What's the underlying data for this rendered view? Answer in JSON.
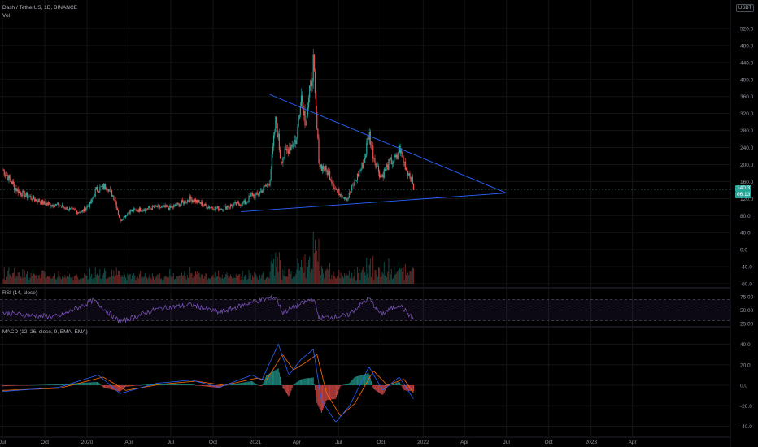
{
  "header": {
    "symbol_line": "Dash / TetherUS, 1D, BINANCE",
    "vol_label": "Vol",
    "currency_badge": "USDT"
  },
  "price_tag": {
    "price": "140.3",
    "countdown": "06:13"
  },
  "rsi_label": "RSI (14, close)",
  "macd_label": "MACD (12, 26, close, 9, EMA, EMA)",
  "colors": {
    "background": "#000000",
    "up": "#26a69a",
    "down": "#ef5350",
    "trendline": "#2962ff",
    "rsi": "#7e57c2",
    "macd": "#2962ff",
    "signal": "#ff6d00",
    "grid": "#141414"
  },
  "chart_data": [
    {
      "type": "candlestick",
      "title": "Dash / TetherUS, 1D, BINANCE",
      "price_axis_labels": [
        "520.0",
        "480.0",
        "440.0",
        "400.0",
        "360.0",
        "320.0",
        "280.0",
        "240.0",
        "200.0",
        "160.0",
        "120.0",
        "80.0",
        "40.0",
        "0.0",
        "-40.0",
        "-80.0"
      ],
      "time_axis_labels": [
        "Jul",
        "Oct",
        "2020",
        "Apr",
        "Jul",
        "Oct",
        "2021",
        "Apr",
        "Jul",
        "Oct",
        "2022",
        "Apr",
        "Jul",
        "Oct",
        "2023",
        "Apr"
      ],
      "ylim": [
        -80,
        540
      ],
      "last_price": 140.3,
      "price_path": [
        {
          "x": "2019-07-01",
          "y": 190
        },
        {
          "x": "2019-07-15",
          "y": 168
        },
        {
          "x": "2019-08-01",
          "y": 140
        },
        {
          "x": "2019-08-20",
          "y": 128
        },
        {
          "x": "2019-09-10",
          "y": 118
        },
        {
          "x": "2019-10-01",
          "y": 108
        },
        {
          "x": "2019-11-01",
          "y": 104
        },
        {
          "x": "2019-12-01",
          "y": 92
        },
        {
          "x": "2019-12-20",
          "y": 88
        },
        {
          "x": "2020-01-10",
          "y": 110
        },
        {
          "x": "2020-01-20",
          "y": 140
        },
        {
          "x": "2020-02-13",
          "y": 150
        },
        {
          "x": "2020-03-01",
          "y": 120
        },
        {
          "x": "2020-03-13",
          "y": 68
        },
        {
          "x": "2020-04-01",
          "y": 90
        },
        {
          "x": "2020-05-01",
          "y": 95
        },
        {
          "x": "2020-06-01",
          "y": 100
        },
        {
          "x": "2020-07-01",
          "y": 98
        },
        {
          "x": "2020-08-15",
          "y": 120
        },
        {
          "x": "2020-09-15",
          "y": 102
        },
        {
          "x": "2020-10-15",
          "y": 96
        },
        {
          "x": "2020-11-15",
          "y": 105
        },
        {
          "x": "2020-12-10",
          "y": 110
        },
        {
          "x": "2020-12-25",
          "y": 130
        },
        {
          "x": "2021-01-01",
          "y": 125
        },
        {
          "x": "2021-01-20",
          "y": 145
        },
        {
          "x": "2021-02-01",
          "y": 160
        },
        {
          "x": "2021-02-15",
          "y": 310
        },
        {
          "x": "2021-02-25",
          "y": 210
        },
        {
          "x": "2021-03-15",
          "y": 240
        },
        {
          "x": "2021-04-01",
          "y": 260
        },
        {
          "x": "2021-04-10",
          "y": 370
        },
        {
          "x": "2021-04-20",
          "y": 300
        },
        {
          "x": "2021-05-01",
          "y": 380
        },
        {
          "x": "2021-05-07",
          "y": 440
        },
        {
          "x": "2021-05-12",
          "y": 330
        },
        {
          "x": "2021-05-20",
          "y": 200
        },
        {
          "x": "2021-06-10",
          "y": 180
        },
        {
          "x": "2021-06-25",
          "y": 140
        },
        {
          "x": "2021-07-20",
          "y": 120
        },
        {
          "x": "2021-08-10",
          "y": 170
        },
        {
          "x": "2021-08-25",
          "y": 205
        },
        {
          "x": "2021-09-05",
          "y": 275
        },
        {
          "x": "2021-09-15",
          "y": 220
        },
        {
          "x": "2021-10-01",
          "y": 170
        },
        {
          "x": "2021-10-20",
          "y": 205
        },
        {
          "x": "2021-11-05",
          "y": 215
        },
        {
          "x": "2021-11-10",
          "y": 240
        },
        {
          "x": "2021-11-22",
          "y": 200
        },
        {
          "x": "2021-12-05",
          "y": 170
        },
        {
          "x": "2021-12-12",
          "y": 140
        }
      ],
      "trendlines": [
        {
          "name": "upper",
          "from": {
            "x": "2021-02-01",
            "y": 365
          },
          "to": {
            "x": "2022-07-01",
            "y": 133
          }
        },
        {
          "name": "lower",
          "from": {
            "x": "2020-12-01",
            "y": 89
          },
          "to": {
            "x": "2022-07-01",
            "y": 133
          }
        }
      ]
    },
    {
      "type": "line",
      "title": "RSI (14, close)",
      "axis_labels": [
        "75.00",
        "50.00",
        "25.00"
      ],
      "ylim": [
        20,
        80
      ],
      "bands": [
        70,
        30
      ],
      "path": [
        {
          "x": "2019-07-01",
          "y": 45
        },
        {
          "x": "2019-09-01",
          "y": 40
        },
        {
          "x": "2019-11-01",
          "y": 38
        },
        {
          "x": "2020-01-15",
          "y": 68
        },
        {
          "x": "2020-03-13",
          "y": 28
        },
        {
          "x": "2020-06-01",
          "y": 52
        },
        {
          "x": "2020-08-15",
          "y": 60
        },
        {
          "x": "2020-10-15",
          "y": 45
        },
        {
          "x": "2020-12-25",
          "y": 65
        },
        {
          "x": "2021-02-15",
          "y": 74
        },
        {
          "x": "2021-03-01",
          "y": 45
        },
        {
          "x": "2021-05-07",
          "y": 72
        },
        {
          "x": "2021-05-20",
          "y": 35
        },
        {
          "x": "2021-07-20",
          "y": 40
        },
        {
          "x": "2021-09-05",
          "y": 72
        },
        {
          "x": "2021-10-01",
          "y": 42
        },
        {
          "x": "2021-11-10",
          "y": 60
        },
        {
          "x": "2021-12-12",
          "y": 32
        }
      ]
    },
    {
      "type": "line",
      "title": "MACD (12, 26, close, 9, EMA, EMA)",
      "axis_labels": [
        "40.0",
        "20.0",
        "0.0",
        "-20.0",
        "-40.0"
      ],
      "ylim": [
        -45,
        45
      ],
      "series": [
        {
          "name": "MACD",
          "path": [
            {
              "x": "2019-07-01",
              "y": -6
            },
            {
              "x": "2019-09-01",
              "y": -4
            },
            {
              "x": "2019-11-01",
              "y": -2
            },
            {
              "x": "2020-01-25",
              "y": 10
            },
            {
              "x": "2020-03-13",
              "y": -8
            },
            {
              "x": "2020-06-01",
              "y": 2
            },
            {
              "x": "2020-08-15",
              "y": 5
            },
            {
              "x": "2020-10-15",
              "y": -2
            },
            {
              "x": "2020-12-25",
              "y": 10
            },
            {
              "x": "2021-01-15",
              "y": 5
            },
            {
              "x": "2021-02-20",
              "y": 40
            },
            {
              "x": "2021-03-15",
              "y": 10
            },
            {
              "x": "2021-04-10",
              "y": 25
            },
            {
              "x": "2021-05-07",
              "y": 35
            },
            {
              "x": "2021-05-25",
              "y": -15
            },
            {
              "x": "2021-06-25",
              "y": -36
            },
            {
              "x": "2021-07-25",
              "y": -20
            },
            {
              "x": "2021-09-05",
              "y": 18
            },
            {
              "x": "2021-10-05",
              "y": -5
            },
            {
              "x": "2021-11-10",
              "y": 8
            },
            {
              "x": "2021-12-12",
              "y": -14
            }
          ]
        },
        {
          "name": "Signal",
          "path": [
            {
              "x": "2019-07-01",
              "y": -5
            },
            {
              "x": "2019-09-01",
              "y": -4
            },
            {
              "x": "2019-11-01",
              "y": -3
            },
            {
              "x": "2020-02-05",
              "y": 8
            },
            {
              "x": "2020-03-25",
              "y": -5
            },
            {
              "x": "2020-06-10",
              "y": 1
            },
            {
              "x": "2020-08-25",
              "y": 4
            },
            {
              "x": "2020-10-25",
              "y": 0
            },
            {
              "x": "2021-01-05",
              "y": 7
            },
            {
              "x": "2021-01-25",
              "y": 5
            },
            {
              "x": "2021-03-01",
              "y": 30
            },
            {
              "x": "2021-03-25",
              "y": 15
            },
            {
              "x": "2021-04-20",
              "y": 22
            },
            {
              "x": "2021-05-15",
              "y": 30
            },
            {
              "x": "2021-06-05",
              "y": -8
            },
            {
              "x": "2021-07-05",
              "y": -30
            },
            {
              "x": "2021-08-05",
              "y": -18
            },
            {
              "x": "2021-09-15",
              "y": 14
            },
            {
              "x": "2021-10-15",
              "y": 0
            },
            {
              "x": "2021-11-20",
              "y": 6
            },
            {
              "x": "2021-12-12",
              "y": -8
            }
          ]
        }
      ]
    }
  ]
}
